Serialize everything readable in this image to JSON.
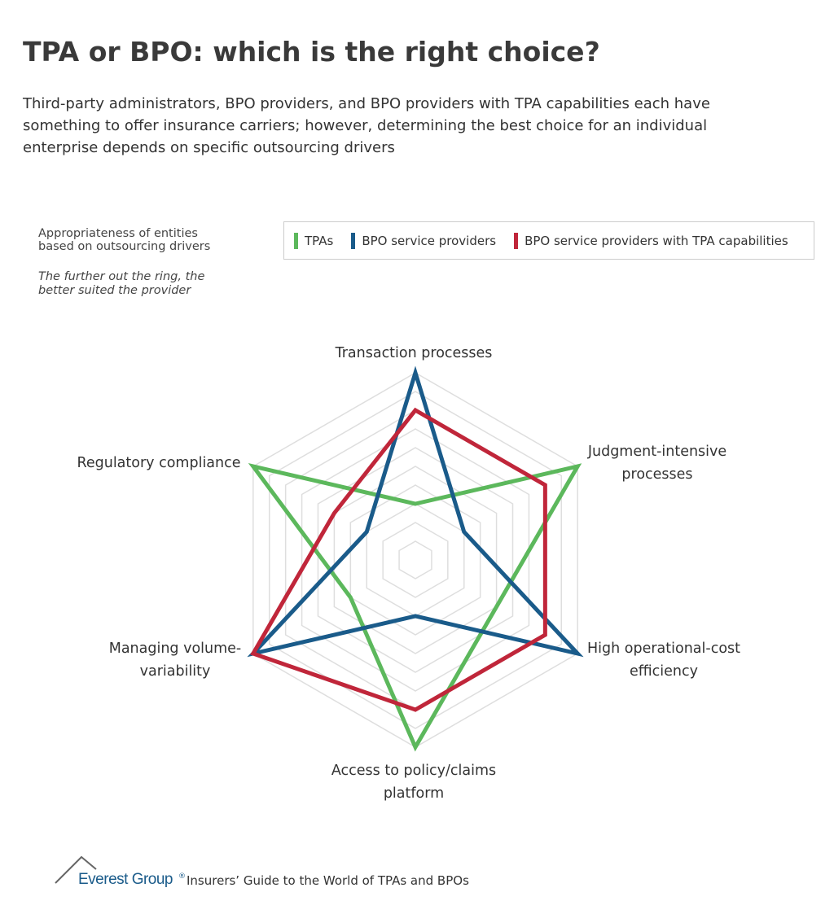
{
  "header": {
    "title": "TPA or BPO: which is the right choice?",
    "subtitle": "Third-party administrators, BPO providers, and BPO providers with TPA capabilities each have something to offer insurance carriers; however, determining the best choice for an individual enterprise depends on specific outsourcing drivers"
  },
  "notes": {
    "caption": "Appropriateness of entities based on outsourcing drivers",
    "hint": "The further out the ring, the better suited the provider"
  },
  "footer": {
    "brand": "Everest Group",
    "mark": "®",
    "source": "Insurers’ Guide to the World of TPAs and BPOs"
  },
  "chart_data": {
    "type": "radar",
    "categories": [
      "Transaction processes",
      "Judgment-intensive processes",
      "High operational-cost efficiency",
      "Access to policy/claims platform",
      "Managing volume-variability",
      "Regulatory compliance"
    ],
    "rlim": [
      0,
      10
    ],
    "rticks": [
      1,
      2,
      3,
      4,
      5,
      6,
      7,
      8,
      9,
      10
    ],
    "grid": true,
    "legend": "top-right",
    "series": [
      {
        "name": "TPAs",
        "color": "#5cb85c",
        "values": [
          3,
          10,
          5,
          10,
          4,
          10
        ]
      },
      {
        "name": "BPO service providers",
        "color": "#1a5b8a",
        "values": [
          10,
          3,
          10,
          3,
          10,
          3
        ]
      },
      {
        "name": "BPO service providers with TPA capabilities",
        "color": "#c0263a",
        "values": [
          8,
          8,
          8,
          8,
          10,
          5
        ]
      }
    ]
  }
}
